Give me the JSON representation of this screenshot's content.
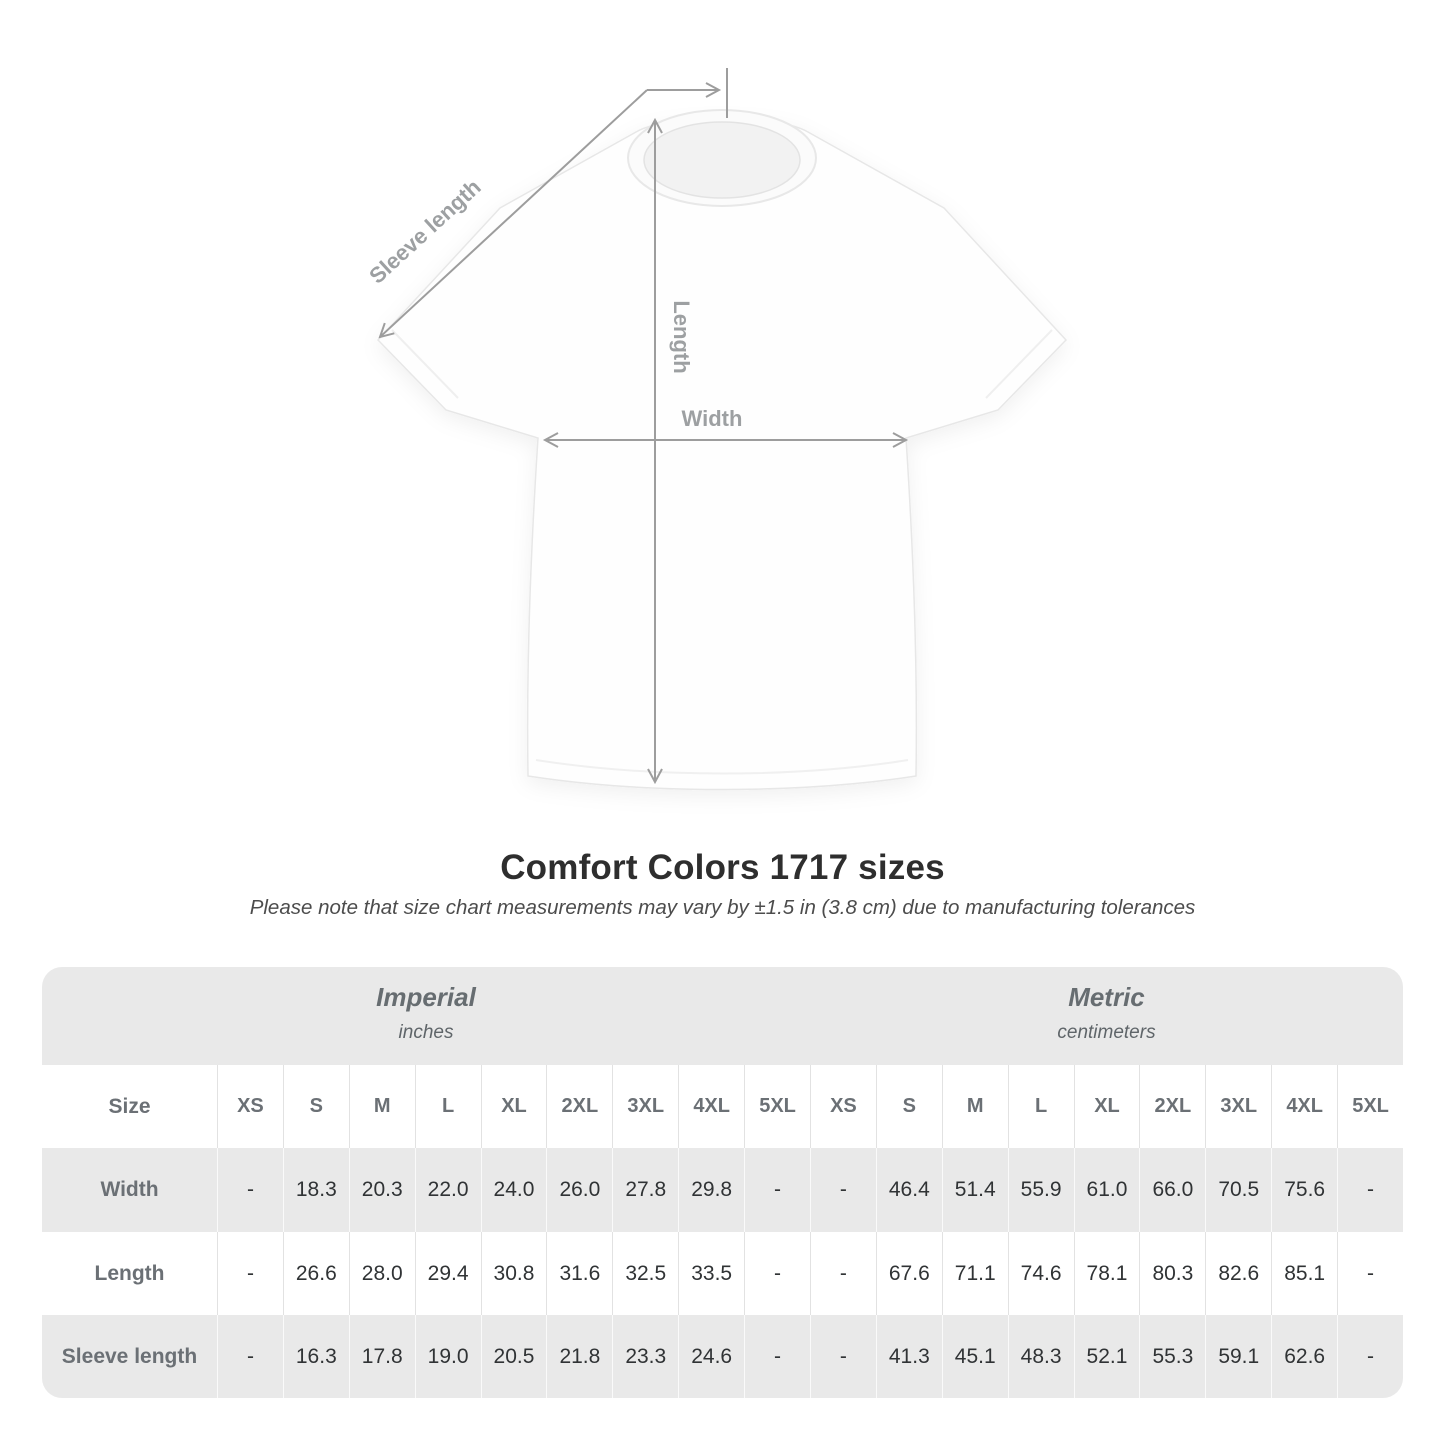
{
  "diagram": {
    "sleeve_label": "Sleeve length",
    "length_label": "Length",
    "width_label": "Width"
  },
  "title": "Comfort Colors 1717 sizes",
  "subtitle": "Please note that size chart measurements may vary by ±1.5 in (3.8 cm) due to manufacturing tolerances",
  "chart_data": {
    "type": "table",
    "corner_label": "Size",
    "units": [
      {
        "name": "Imperial",
        "sub": "inches"
      },
      {
        "name": "Metric",
        "sub": "centimeters"
      }
    ],
    "sizes": [
      "XS",
      "S",
      "M",
      "L",
      "XL",
      "2XL",
      "3XL",
      "4XL",
      "5XL"
    ],
    "rows": [
      {
        "label": "Width",
        "imperial": [
          "-",
          "18.3",
          "20.3",
          "22.0",
          "24.0",
          "26.0",
          "27.8",
          "29.8",
          "-"
        ],
        "metric": [
          "-",
          "46.4",
          "51.4",
          "55.9",
          "61.0",
          "66.0",
          "70.5",
          "75.6",
          "-"
        ]
      },
      {
        "label": "Length",
        "imperial": [
          "-",
          "26.6",
          "28.0",
          "29.4",
          "30.8",
          "31.6",
          "32.5",
          "33.5",
          "-"
        ],
        "metric": [
          "-",
          "67.6",
          "71.1",
          "74.6",
          "78.1",
          "80.3",
          "82.6",
          "85.1",
          "-"
        ]
      },
      {
        "label": "Sleeve length",
        "imperial": [
          "-",
          "16.3",
          "17.8",
          "19.0",
          "20.5",
          "21.8",
          "23.3",
          "24.6",
          "-"
        ],
        "metric": [
          "-",
          "41.3",
          "45.1",
          "48.3",
          "52.1",
          "55.3",
          "59.1",
          "62.6",
          "-"
        ]
      }
    ],
    "colors": {
      "band_gray": "#e9e9e9",
      "header_text": "#6b7075",
      "value_text": "#303335",
      "annotation_gray": "#9d9d9d"
    }
  }
}
